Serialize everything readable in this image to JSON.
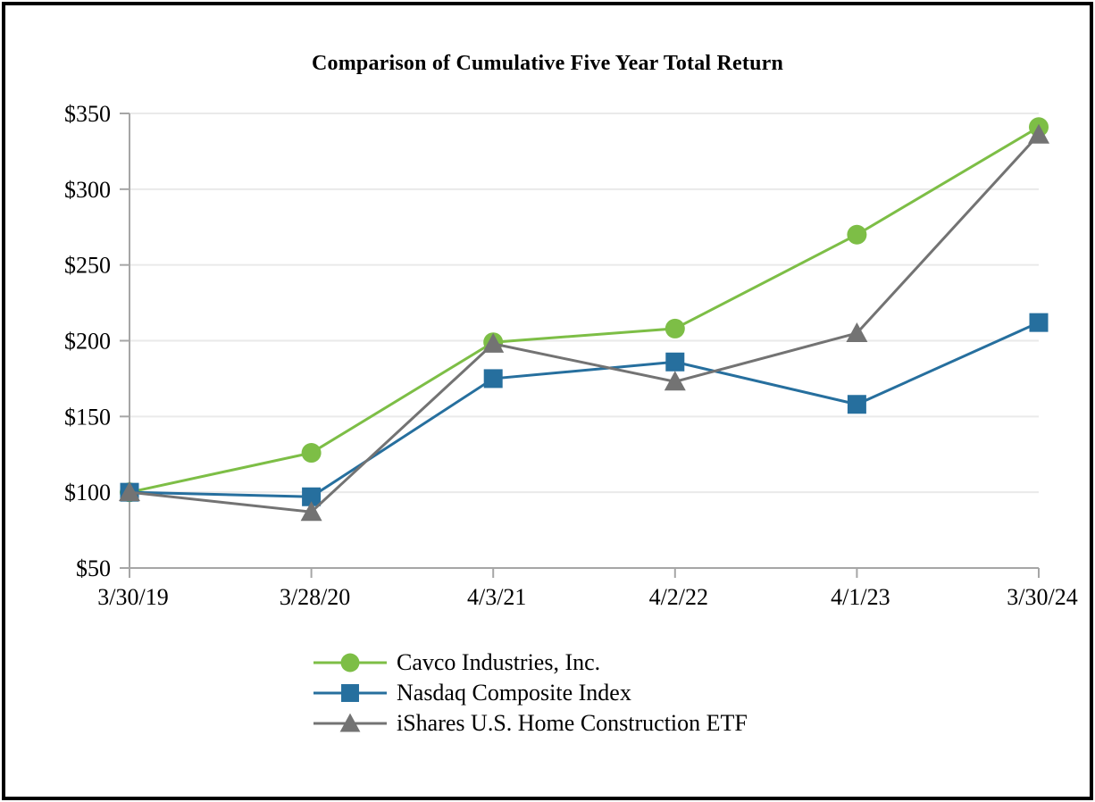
{
  "chart_data": {
    "type": "line",
    "title": "Comparison of Cumulative Five Year Total Return",
    "x_categories": [
      "3/30/19",
      "3/28/20",
      "4/3/21",
      "4/2/22",
      "4/1/23",
      "3/30/24"
    ],
    "y_tick_labels": [
      "$350",
      "$300",
      "$250",
      "$200",
      "$150",
      "$100",
      "$50"
    ],
    "y_min": 50,
    "y_max": 350,
    "y_step": 50,
    "grid": true,
    "legend_position": "bottom",
    "series": [
      {
        "name": "Cavco Industries, Inc.",
        "marker": "circle",
        "color": "#7DBE46",
        "values": [
          100,
          126,
          199,
          208,
          270,
          341
        ]
      },
      {
        "name": "Nasdaq Composite Index",
        "marker": "square",
        "color": "#266F9E",
        "values": [
          100,
          97,
          175,
          186,
          158,
          212
        ]
      },
      {
        "name": "iShares U.S. Home Construction ETF",
        "marker": "triangle",
        "color": "#737373",
        "values": [
          100,
          87,
          198,
          173,
          205,
          336
        ]
      }
    ],
    "colors": {
      "axis": "#A6A6A6",
      "gridline": "#EAEAEA",
      "text": "#000000",
      "background": "#FFFFFF",
      "border": "#000000"
    }
  }
}
